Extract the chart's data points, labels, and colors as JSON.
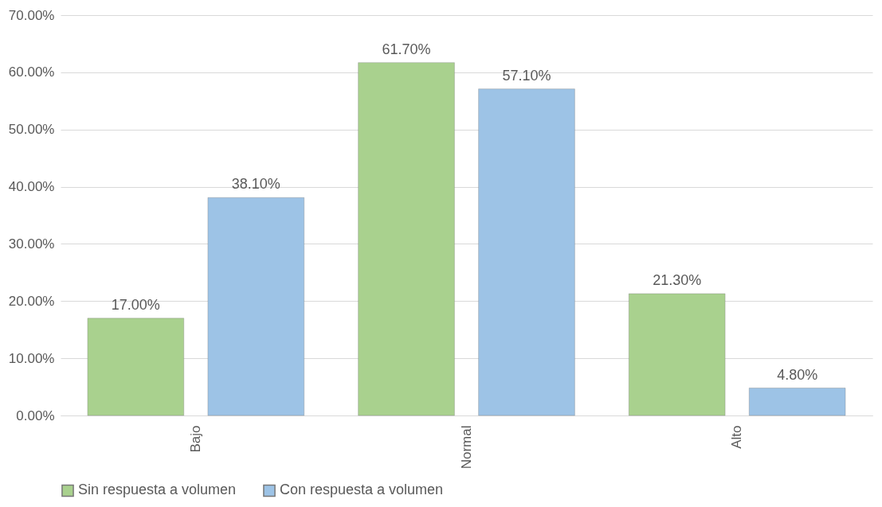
{
  "chart_data": {
    "type": "bar",
    "categories": [
      "Bajo",
      "Normal",
      "Alto"
    ],
    "series": [
      {
        "name": "Sin respuesta a volumen",
        "color": "#a9d18e",
        "values": [
          17.0,
          61.7,
          21.3
        ],
        "value_labels": [
          "17.00%",
          "61.70%",
          "21.30%"
        ]
      },
      {
        "name": "Con respuesta a volumen",
        "color": "#9dc3e6",
        "values": [
          38.1,
          57.1,
          4.8
        ],
        "value_labels": [
          "38.10%",
          "57.10%",
          "4.80%"
        ]
      }
    ],
    "ylim": [
      0,
      70
    ],
    "yticks": [
      {
        "value": 0,
        "label": "0.00%"
      },
      {
        "value": 10,
        "label": "10.00%"
      },
      {
        "value": 20,
        "label": "20.00%"
      },
      {
        "value": 30,
        "label": "30.00%"
      },
      {
        "value": 40,
        "label": "40.00%"
      },
      {
        "value": 50,
        "label": "50.00%"
      },
      {
        "value": 60,
        "label": "60.00%"
      },
      {
        "value": 70,
        "label": "70.00%"
      }
    ],
    "grid": "y",
    "legend": "bottom"
  }
}
